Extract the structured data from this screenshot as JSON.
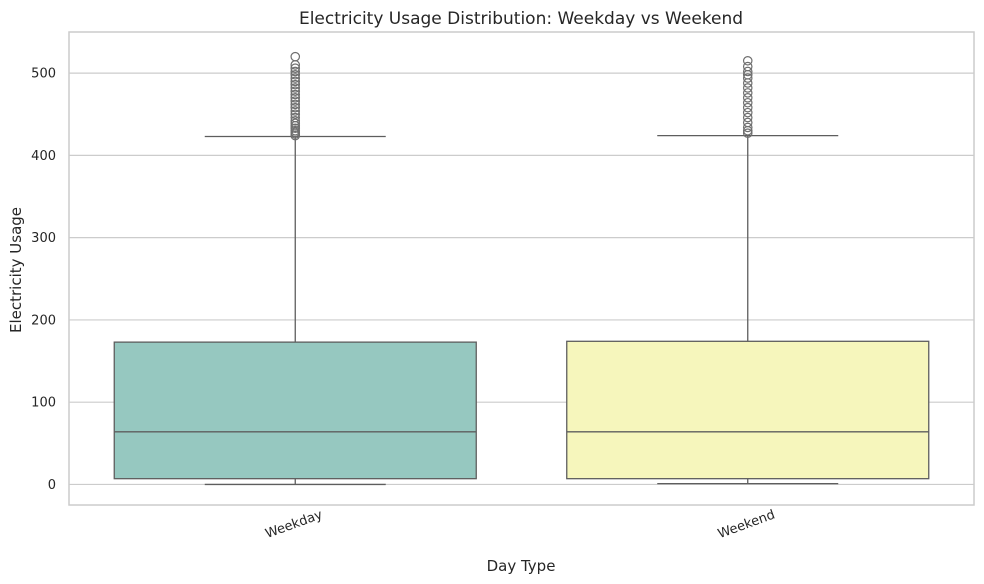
{
  "chart_data": {
    "type": "boxplot",
    "title": "Electricity Usage Distribution: Weekday vs Weekend",
    "xlabel": "Day Type",
    "ylabel": "Electricity Usage",
    "ylim": [
      -25,
      550
    ],
    "yticks": [
      0,
      100,
      200,
      300,
      400,
      500
    ],
    "grid": true,
    "categories": [
      "Weekday",
      "Weekend"
    ],
    "boxes": [
      {
        "category": "Weekday",
        "color": "#96c8c0",
        "whisker_low": 0,
        "q1": 7,
        "median": 64,
        "q3": 173,
        "whisker_high": 423,
        "outliers": [
          424,
          426,
          428,
          430,
          433,
          436,
          439,
          442,
          446,
          450,
          454,
          458,
          462,
          466,
          470,
          474,
          478,
          482,
          486,
          490,
          494,
          498,
          502,
          506,
          510,
          520
        ]
      },
      {
        "category": "Weekend",
        "color": "#f6f6bc",
        "whisker_low": 1,
        "q1": 7,
        "median": 64,
        "q3": 174,
        "whisker_high": 424,
        "outliers": [
          427,
          430,
          434,
          440,
          446,
          452,
          458,
          464,
          470,
          476,
          482,
          488,
          494,
          498,
          502,
          508,
          515
        ]
      }
    ]
  }
}
